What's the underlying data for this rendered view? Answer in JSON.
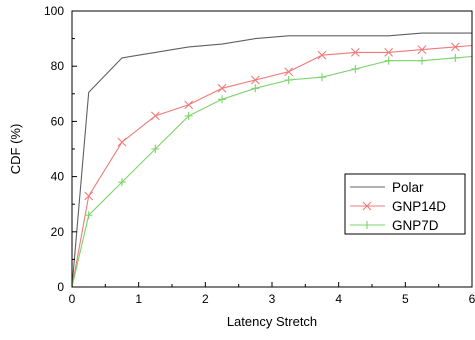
{
  "chart_data": {
    "type": "line",
    "xlabel": "Latency Stretch",
    "ylabel": "CDF (%)",
    "xlim": [
      0,
      6
    ],
    "ylim": [
      0,
      100
    ],
    "xticks": [
      "0",
      "1",
      "2",
      "3",
      "4",
      "5",
      "6"
    ],
    "yticks": [
      "0",
      "20",
      "40",
      "60",
      "80",
      "100"
    ],
    "grid": false,
    "legend_position": "bottom-right",
    "series": [
      {
        "name": "Polar",
        "color": "#606060",
        "marker": "none",
        "x": [
          0,
          0.25,
          0.75,
          1.25,
          1.75,
          2.25,
          2.75,
          3.25,
          3.75,
          4.25,
          4.75,
          5.25,
          5.75,
          6
        ],
        "y": [
          0,
          70.5,
          83,
          85,
          87,
          88,
          90,
          91,
          91,
          91,
          91,
          92,
          92,
          92
        ]
      },
      {
        "name": "GNP14D",
        "color": "#f07a7a",
        "marker": "x",
        "x": [
          0,
          0.25,
          0.75,
          1.25,
          1.75,
          2.25,
          2.75,
          3.25,
          3.75,
          4.25,
          4.75,
          5.25,
          5.75,
          6
        ],
        "y": [
          0,
          33,
          52.5,
          62,
          66,
          72,
          75,
          78,
          84,
          85,
          85,
          86,
          87,
          87.5
        ]
      },
      {
        "name": "GNP7D",
        "color": "#7ad36a",
        "marker": "plus",
        "x": [
          0,
          0.25,
          0.75,
          1.25,
          1.75,
          2.25,
          2.75,
          3.25,
          3.75,
          4.25,
          4.75,
          5.25,
          5.75,
          6
        ],
        "y": [
          0,
          26,
          38,
          50,
          62,
          68,
          72,
          75,
          76,
          79,
          82,
          82,
          83,
          83.5
        ]
      }
    ]
  }
}
